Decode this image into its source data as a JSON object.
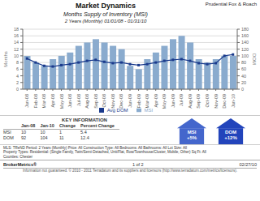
{
  "chart_data": {
    "type": "bar",
    "title": "Market Dynamics",
    "subtitle": [
      "Months Supply of Inventory (MSI)",
      "2 Years (Monthly) 01/01/08 - 01/31/10"
    ],
    "categories": [
      "Jan-08",
      "Feb-08",
      "Mar-08",
      "Apr-08",
      "May-08",
      "Jun-08",
      "Jul-08",
      "Aug-08",
      "Sep-08",
      "Oct-08",
      "Nov-08",
      "Dec-08",
      "Jan-09",
      "Feb-09",
      "Mar-09",
      "Apr-09",
      "May-09",
      "Jun-09",
      "Jul-09",
      "Aug-09",
      "Sep-09",
      "Oct-09",
      "Nov-09",
      "Dec-09",
      "Jan-10"
    ],
    "series": [
      {
        "name": "MSI",
        "type": "bar",
        "color": "#8aabce",
        "values": [
          10,
          8,
          7,
          9,
          10,
          11,
          13,
          14,
          15,
          14,
          13,
          12,
          7,
          6,
          9,
          11,
          13,
          15,
          16,
          14,
          9,
          8,
          9,
          10,
          10
        ]
      },
      {
        "name": "Avg DOM",
        "type": "line",
        "axis": "y2",
        "marker": "square",
        "color": "#1a3a8c",
        "values": [
          92,
          80,
          70,
          68,
          72,
          75,
          80,
          85,
          88,
          82,
          78,
          80,
          75,
          72,
          75,
          80,
          85,
          88,
          90,
          85,
          78,
          75,
          78,
          100,
          104
        ]
      }
    ],
    "ylabel": "Months",
    "y2label": "DOM",
    "ylim": [
      0,
      18
    ],
    "yticks": [
      0,
      2,
      4,
      6,
      8,
      10,
      12,
      14,
      16,
      18
    ],
    "y2lim": [
      0,
      180
    ],
    "y2ticks": [
      0,
      20,
      40,
      60,
      80,
      100,
      120,
      140,
      160,
      180
    ],
    "grid": true,
    "legend": "bottom",
    "annotations": {
      "branding": "Prudential Fox & Roach",
      "key_info": {
        "title": "KEY INFORMATION",
        "headers": [
          "Jan-08",
          "Jan-10",
          "Change",
          "Percent Change"
        ],
        "rows": [
          [
            "MSI",
            "10",
            "10",
            "1",
            "5.4"
          ],
          [
            "DOM",
            "92",
            "104",
            "11",
            "12.4"
          ]
        ]
      },
      "badges": [
        {
          "text": "MSI\n+5%",
          "color": "#4466cc"
        },
        {
          "text": "DOM\n+12%",
          "color": "#2244bb"
        }
      ],
      "footer_info": [
        "MLS: TReND        Period:    2 Years (Monthly)            Price:   All                       Construction Type:    All             Bedrooms:    All             Bathrooms:    All     Lot Size: All",
        "Property Types:   Residential: (Single Family, Twin/Semi-Detached, Unit/Flat, Row/Townhouse/Cluster, Mobile, Other)                                                                   Sq Ft:    All",
        "Counties:         Chester"
      ],
      "footer": {
        "left": "BrokerMetrics®",
        "center": "1 of 2",
        "right": "02/27/10",
        "disclaimer": "Information not guaranteed. © 2010 - 2011 Terradatum and its suppliers and licensors (http://www.terradatum.com/metrics/licensors)."
      }
    }
  }
}
